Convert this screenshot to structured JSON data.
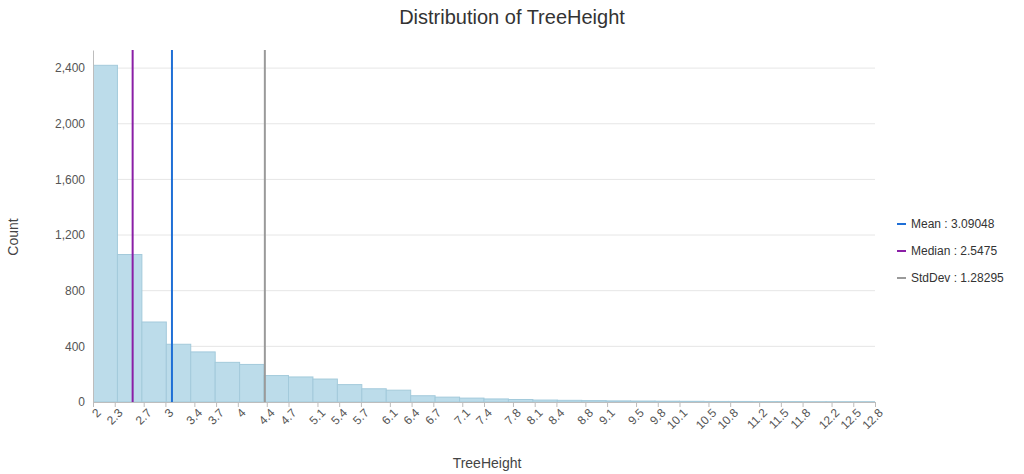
{
  "chart_data": {
    "type": "histogram",
    "title": "Distribution of TreeHeight",
    "x_label": "TreeHeight",
    "y_label": "Count",
    "bins": [
      2,
      2.3375,
      2.675,
      3.0125,
      3.35,
      3.6875,
      4.025,
      4.3625,
      4.7,
      5.0375,
      5.375,
      5.7125,
      6.05,
      6.3875,
      6.725,
      7.0625,
      7.4,
      7.7375,
      8.075,
      8.4125,
      8.75,
      9.0875,
      9.425,
      9.7625,
      10.1,
      10.4375,
      10.775,
      11.1125,
      11.45,
      11.7875,
      12.125,
      12.4625,
      12.8
    ],
    "values": [
      2420,
      1060,
      575,
      415,
      360,
      285,
      270,
      190,
      180,
      165,
      125,
      95,
      85,
      45,
      35,
      28,
      22,
      18,
      14,
      12,
      10,
      8,
      7,
      6,
      5,
      4,
      4,
      3,
      3,
      2,
      2,
      2
    ],
    "color": "#bcdcea",
    "xlim": [
      2,
      12.8
    ],
    "xticks": [
      2,
      2.3,
      2.7,
      3,
      3.4,
      3.7,
      4,
      4.4,
      4.7,
      5.1,
      5.4,
      5.7,
      6.1,
      6.4,
      6.7,
      7.1,
      7.4,
      7.8,
      8.1,
      8.4,
      8.8,
      9.1,
      9.5,
      9.8,
      10.1,
      10.5,
      10.8,
      11.2,
      11.5,
      11.8,
      12.2,
      12.5,
      12.8
    ],
    "ylim": [
      0,
      2530
    ],
    "yticks": [
      0,
      400,
      800,
      {
        "value": 1200,
        "label": "1,200"
      },
      {
        "value": 1600,
        "label": "1,600"
      },
      {
        "value": 2000,
        "label": "2,000"
      },
      {
        "value": 2400,
        "label": "2,400"
      }
    ],
    "grid": true,
    "reference_lines": [
      {
        "label": "Mean : 3.09048",
        "x": 3.09048,
        "color": "#1f6fd6"
      },
      {
        "label": "Median : 2.5475",
        "x": 2.5475,
        "color": "#8a1fa6"
      },
      {
        "label": "StdDev : 1.28295",
        "x": 4.37343,
        "color": "#9a9a9a"
      }
    ]
  }
}
